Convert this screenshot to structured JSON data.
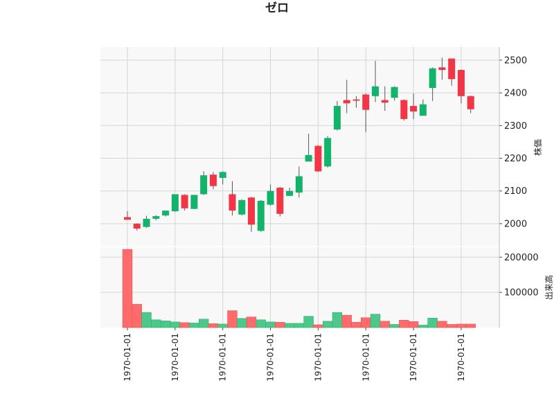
{
  "chart_data": {
    "type": "candlestick",
    "title": "ゼロ",
    "price_ylabel": "株価",
    "volume_ylabel": "出来高",
    "x_tick_label": "1970-01-01",
    "price_ylim": [
      1930,
      2540
    ],
    "price_yticks": [
      2000,
      2100,
      2200,
      2300,
      2400,
      2500
    ],
    "volume_ylim": [
      0,
      230000
    ],
    "volume_yticks": [
      100000,
      200000
    ],
    "grid": true,
    "up_color": "#12b36a",
    "down_color": "#f23645",
    "volume_up_color": "#4cc98a",
    "volume_down_color": "#ff6b6b",
    "candles": [
      {
        "o": 2020,
        "h": 2038,
        "l": 2012,
        "c": 2012
      },
      {
        "o": 2000,
        "h": 2001,
        "l": 1979,
        "c": 1985
      },
      {
        "o": 1990,
        "h": 2024,
        "l": 1987,
        "c": 2015
      },
      {
        "o": 2015,
        "h": 2026,
        "l": 2010,
        "c": 2023
      },
      {
        "o": 2025,
        "h": 2040,
        "l": 2022,
        "c": 2040
      },
      {
        "o": 2038,
        "h": 2090,
        "l": 2036,
        "c": 2090
      },
      {
        "o": 2088,
        "h": 2090,
        "l": 2040,
        "c": 2047
      },
      {
        "o": 2045,
        "h": 2088,
        "l": 2045,
        "c": 2088
      },
      {
        "o": 2090,
        "h": 2160,
        "l": 2088,
        "c": 2148
      },
      {
        "o": 2150,
        "h": 2158,
        "l": 2105,
        "c": 2115
      },
      {
        "o": 2140,
        "h": 2160,
        "l": 2120,
        "c": 2158
      },
      {
        "o": 2090,
        "h": 2130,
        "l": 2025,
        "c": 2040
      },
      {
        "o": 2028,
        "h": 2075,
        "l": 2025,
        "c": 2072
      },
      {
        "o": 2080,
        "h": 2082,
        "l": 1975,
        "c": 1997
      },
      {
        "o": 1978,
        "h": 2072,
        "l": 1975,
        "c": 2070
      },
      {
        "o": 2058,
        "h": 2120,
        "l": 2055,
        "c": 2100
      },
      {
        "o": 2110,
        "h": 2112,
        "l": 2022,
        "c": 2030
      },
      {
        "o": 2085,
        "h": 2110,
        "l": 2085,
        "c": 2100
      },
      {
        "o": 2095,
        "h": 2175,
        "l": 2080,
        "c": 2145
      },
      {
        "o": 2190,
        "h": 2275,
        "l": 2190,
        "c": 2210
      },
      {
        "o": 2238,
        "h": 2240,
        "l": 2158,
        "c": 2160
      },
      {
        "o": 2175,
        "h": 2268,
        "l": 2172,
        "c": 2262
      },
      {
        "o": 2288,
        "h": 2375,
        "l": 2285,
        "c": 2360
      },
      {
        "o": 2378,
        "h": 2440,
        "l": 2338,
        "c": 2368
      },
      {
        "o": 2380,
        "h": 2390,
        "l": 2355,
        "c": 2376
      },
      {
        "o": 2395,
        "h": 2398,
        "l": 2280,
        "c": 2348
      },
      {
        "o": 2390,
        "h": 2498,
        "l": 2372,
        "c": 2420
      },
      {
        "o": 2378,
        "h": 2420,
        "l": 2345,
        "c": 2370
      },
      {
        "o": 2385,
        "h": 2420,
        "l": 2376,
        "c": 2418
      },
      {
        "o": 2378,
        "h": 2380,
        "l": 2315,
        "c": 2320
      },
      {
        "o": 2360,
        "h": 2398,
        "l": 2320,
        "c": 2343
      },
      {
        "o": 2330,
        "h": 2380,
        "l": 2330,
        "c": 2365
      },
      {
        "o": 2415,
        "h": 2478,
        "l": 2375,
        "c": 2475
      },
      {
        "o": 2478,
        "h": 2508,
        "l": 2440,
        "c": 2470
      },
      {
        "o": 2505,
        "h": 2505,
        "l": 2422,
        "c": 2442
      },
      {
        "o": 2470,
        "h": 2472,
        "l": 2368,
        "c": 2390
      },
      {
        "o": 2390,
        "h": 2392,
        "l": 2338,
        "c": 2350
      }
    ],
    "volume": [
      222000,
      66000,
      43000,
      22000,
      19000,
      16000,
      14000,
      13000,
      24000,
      11000,
      10000,
      48000,
      26000,
      30000,
      22000,
      16000,
      15000,
      12000,
      12000,
      32000,
      8000,
      18000,
      43000,
      35000,
      15000,
      28000,
      38000,
      18000,
      9000,
      21000,
      17000,
      7000,
      27000,
      18000,
      9000,
      10000,
      10000
    ]
  }
}
